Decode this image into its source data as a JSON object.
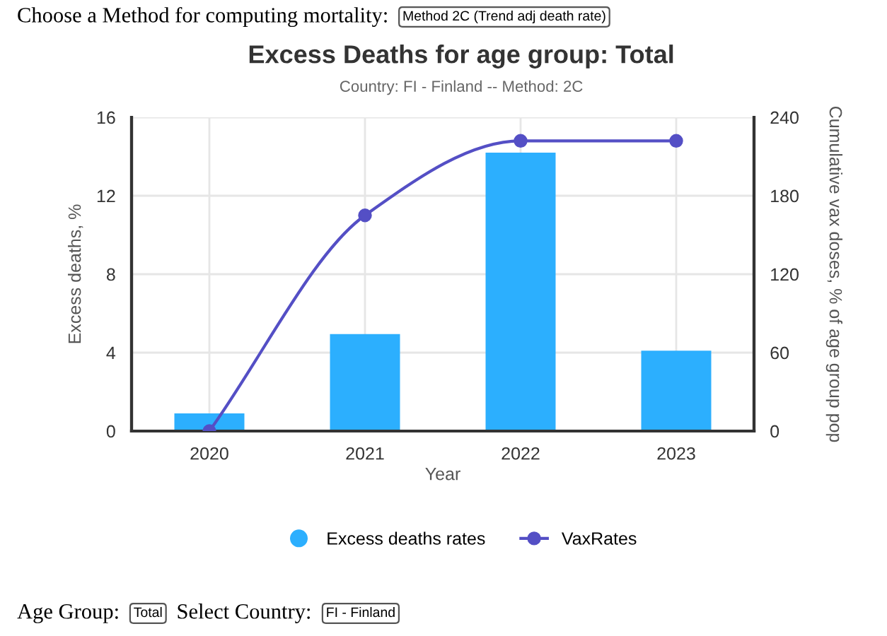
{
  "chart_data": {
    "type": "bar",
    "title": "Excess Deaths for age group: Total",
    "subtitle": "Country: FI - Finland -- Method: 2C",
    "xlabel": "Year",
    "ylabel": "Excess deaths, %",
    "y2label": "Cumulative vax doses, % of age group pop",
    "categories": [
      "2020",
      "2021",
      "2022",
      "2023"
    ],
    "series": [
      {
        "name": "Excess deaths rates",
        "color": "#2caffe",
        "values": [
          0.9,
          4.95,
          14.2,
          4.1
        ]
      },
      {
        "name": "VaxRates",
        "type": "line",
        "axis": "y2",
        "color": "#544fc5",
        "marker": "circle",
        "values": [
          0,
          165,
          222,
          222
        ]
      }
    ],
    "ylim": [
      0,
      16
    ],
    "yticks": [
      0,
      4,
      8,
      12,
      16
    ],
    "y2lim": [
      0,
      240
    ],
    "y2ticks": [
      0,
      60,
      120,
      180,
      240
    ],
    "grid": true,
    "legend": "bottom",
    "annotations": [
      "Choose a Method for computing mortality:",
      "Method 2C (Trend adj death rate)",
      "Age Group:",
      "Total",
      "Select Country:",
      "FI - Finland"
    ]
  }
}
